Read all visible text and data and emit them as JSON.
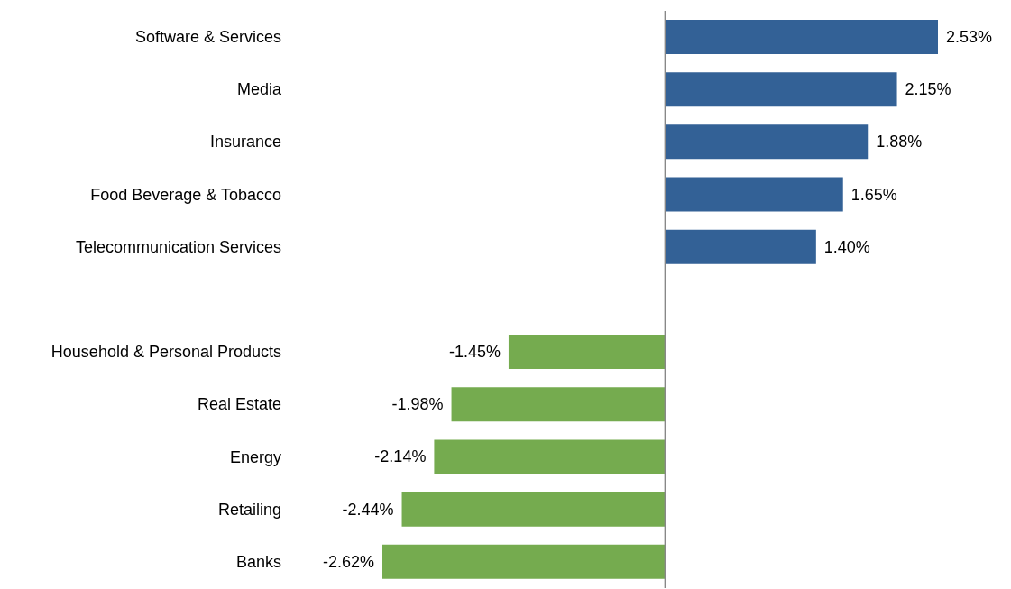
{
  "chart_data": {
    "type": "bar",
    "orientation": "horizontal",
    "categories": [
      "Software & Services",
      "Media",
      "Insurance",
      "Food Beverage & Tobacco",
      "Telecommunication Services",
      null,
      "Household & Personal Products",
      "Real Estate",
      "Energy",
      "Retailing",
      "Banks"
    ],
    "values": [
      2.53,
      2.15,
      1.88,
      1.65,
      1.4,
      null,
      -1.45,
      -1.98,
      -2.14,
      -2.44,
      -2.62
    ],
    "colors": [
      "#336196",
      "#336196",
      "#336196",
      "#336196",
      "#336196",
      null,
      "#75ab4f",
      "#75ab4f",
      "#75ab4f",
      "#75ab4f",
      "#75ab4f"
    ],
    "value_labels": [
      "2.53%",
      "2.15%",
      "1.88%",
      "1.65%",
      "1.40%",
      null,
      "-1.45%",
      "-1.98%",
      "-2.14%",
      "-2.44%",
      "-2.62%"
    ]
  }
}
